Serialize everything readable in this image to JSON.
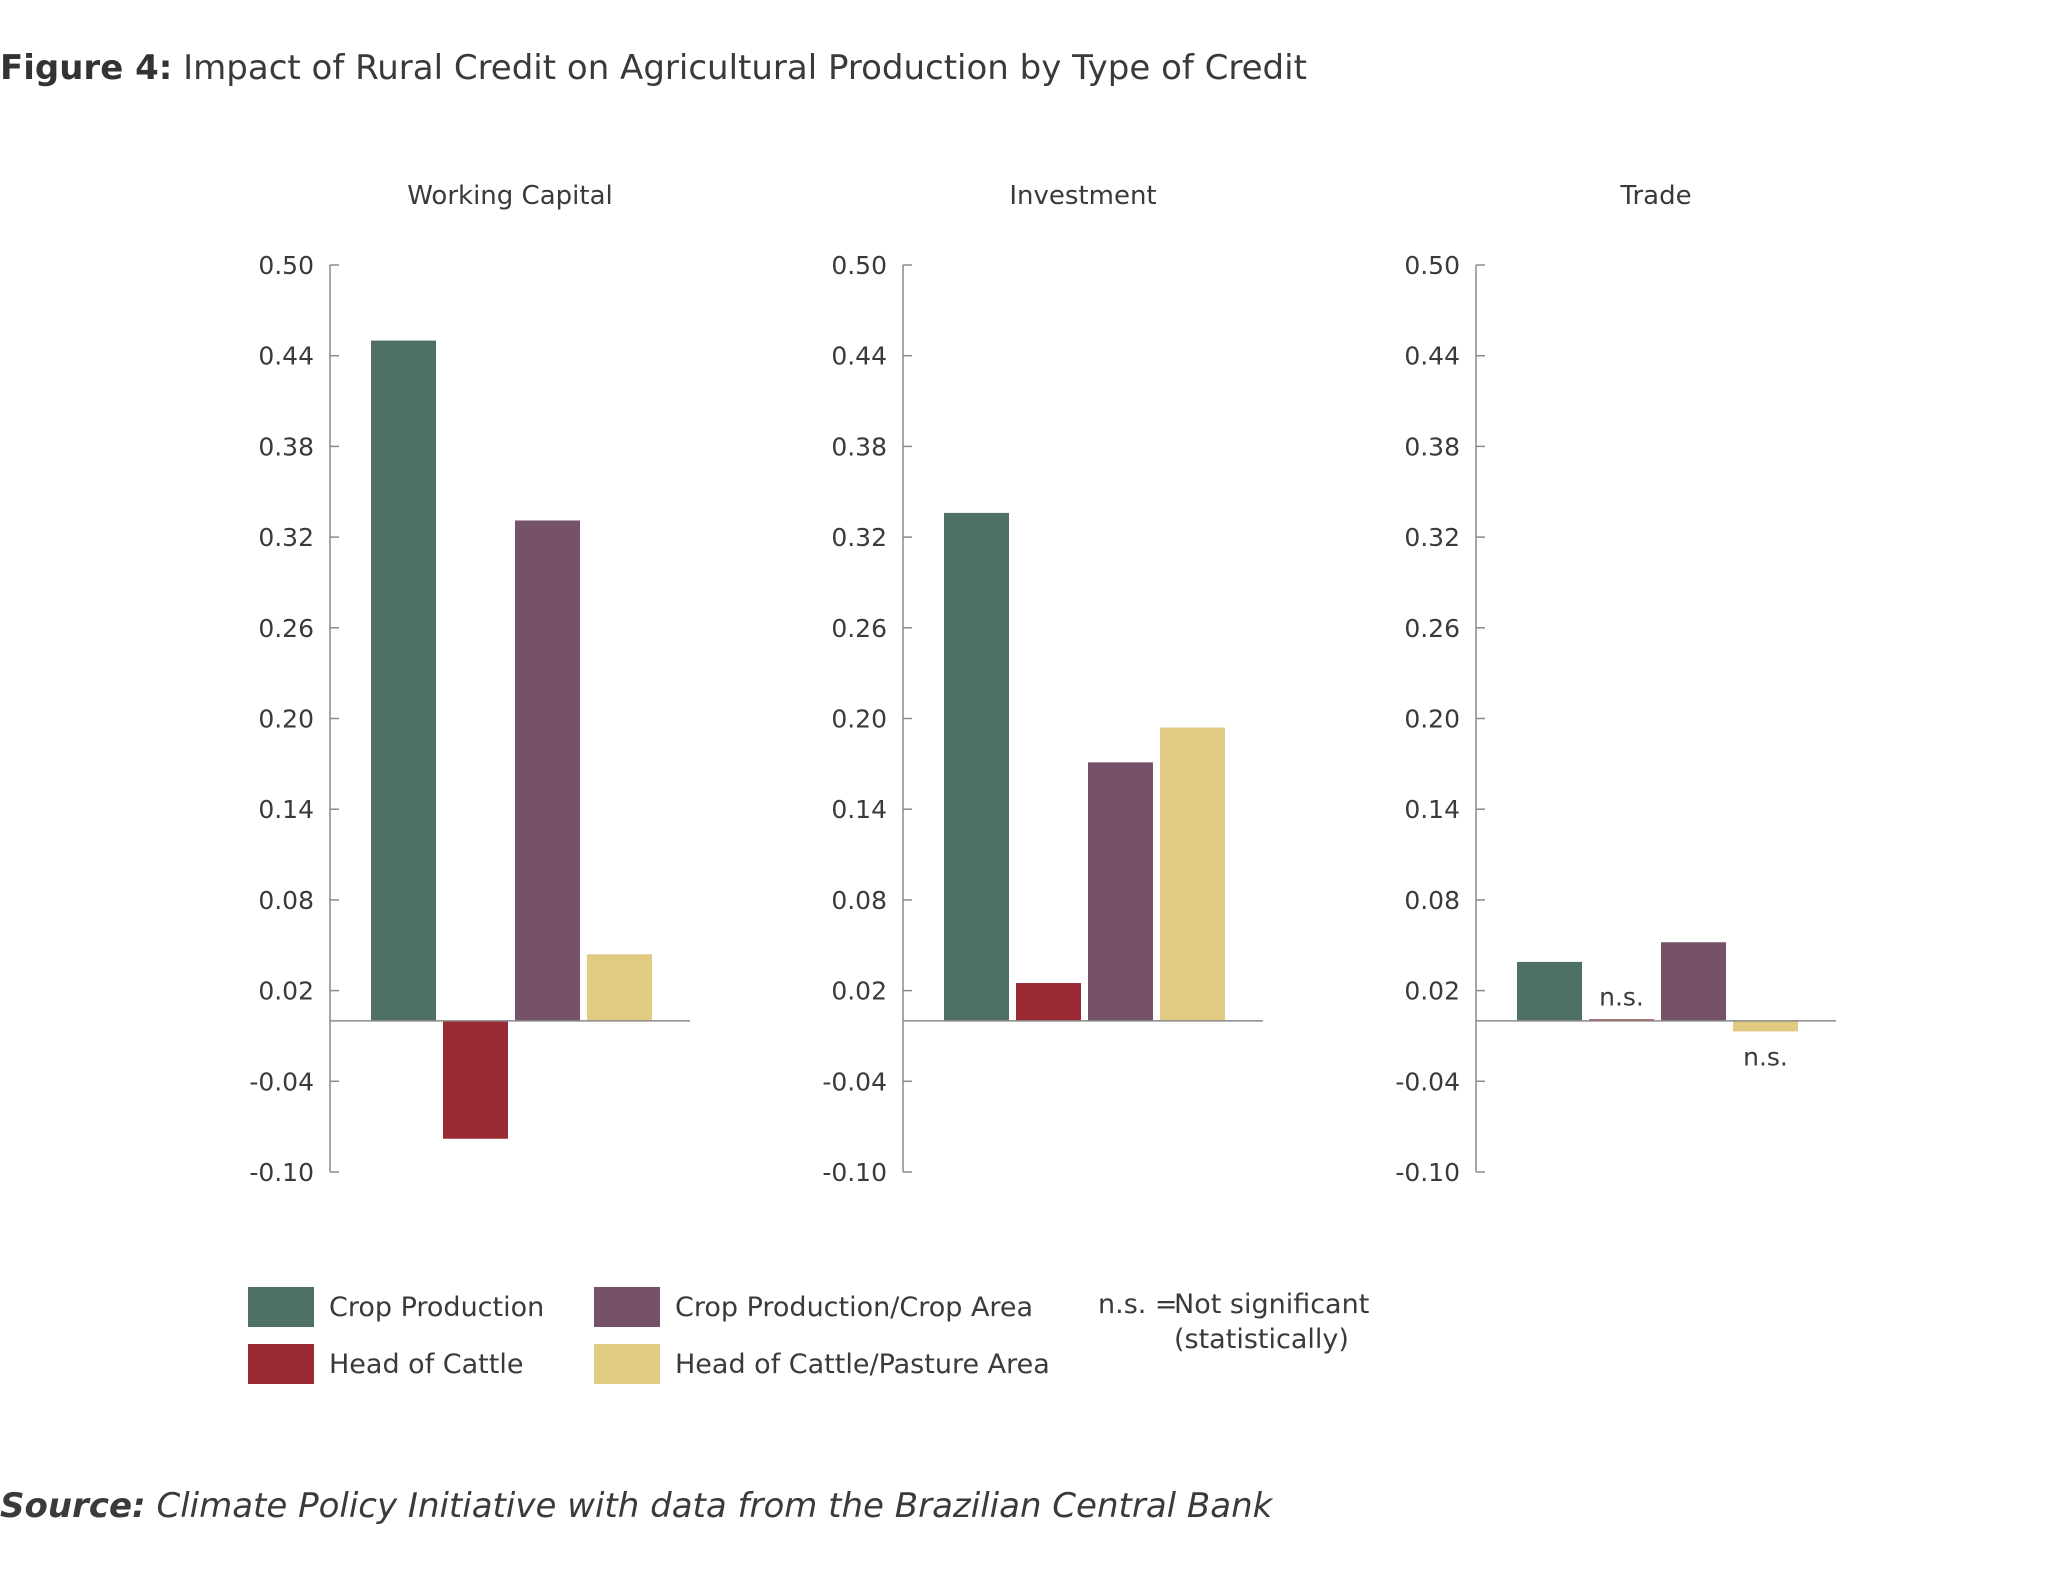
{
  "figure": {
    "title_label": "Figure 4:",
    "title_text": " Impact of Rural Credit on Agricultural Production by Type of Credit"
  },
  "chart_data": [
    {
      "type": "bar",
      "title": "Working Capital",
      "categories": [
        "Crop Production",
        "Head of Cattle",
        "Crop Production/Crop Area",
        "Head of Cattle/Pasture Area"
      ],
      "values": [
        0.45,
        -0.078,
        0.331,
        0.044
      ],
      "annotations": [
        "",
        "",
        "",
        ""
      ],
      "yticks": [
        "0.50",
        "0.44",
        "0.38",
        "0.32",
        "0.26",
        "0.20",
        "0.14",
        "0.08",
        "0.02",
        "-0.04",
        "-0.10"
      ],
      "ylim": [
        -0.1,
        0.5
      ]
    },
    {
      "type": "bar",
      "title": "Investment",
      "categories": [
        "Crop Production",
        "Head of Cattle",
        "Crop Production/Crop Area",
        "Head of Cattle/Pasture Area"
      ],
      "values": [
        0.336,
        0.025,
        0.171,
        0.194
      ],
      "annotations": [
        "",
        "",
        "",
        ""
      ],
      "yticks": [
        "0.50",
        "0.44",
        "0.38",
        "0.32",
        "0.26",
        "0.20",
        "0.14",
        "0.08",
        "0.02",
        "-0.04",
        "-0.10"
      ],
      "ylim": [
        -0.1,
        0.5
      ]
    },
    {
      "type": "bar",
      "title": "Trade",
      "categories": [
        "Crop Production",
        "Head of Cattle",
        "Crop Production/Crop Area",
        "Head of Cattle/Pasture Area"
      ],
      "values": [
        0.039,
        0.001,
        0.052,
        -0.007
      ],
      "annotations": [
        "",
        "n.s.",
        "",
        "n.s."
      ],
      "yticks": [
        "0.50",
        "0.44",
        "0.38",
        "0.32",
        "0.26",
        "0.20",
        "0.14",
        "0.08",
        "0.02",
        "-0.04",
        "-0.10"
      ],
      "ylim": [
        -0.1,
        0.5
      ]
    }
  ],
  "series_colors": {
    "Crop Production": "#4f7064",
    "Head of Cattle": "#9a2b34",
    "Crop Production/Crop Area": "#765269",
    "Head of Cattle/Pasture Area": "#e1ca82"
  },
  "legend": {
    "items": [
      {
        "label": "Crop Production",
        "color": "#4f7064"
      },
      {
        "label": "Head of Cattle",
        "color": "#9a2b34"
      },
      {
        "label": "Crop Production/Crop Area",
        "color": "#765269"
      },
      {
        "label": "Head of Cattle/Pasture Area",
        "color": "#e1ca82"
      }
    ],
    "placement": "bottom",
    "ns_key": "n.s. =",
    "ns_line1": "Not significant",
    "ns_line2": "(statistically)"
  },
  "source": {
    "label": "Source:",
    "text": " Climate Policy Initiative with data from the Brazilian Central Bank"
  }
}
